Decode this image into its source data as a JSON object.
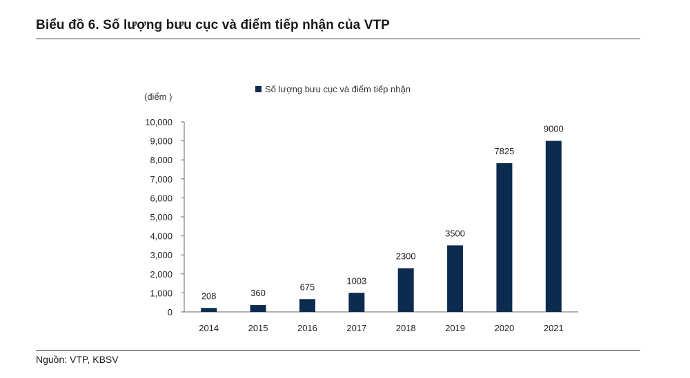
{
  "title": "Biểu đồ 6. Số lượng bưu cục và điểm tiếp nhận của VTP",
  "source": "Nguồn: VTP, KBSV",
  "colors": {
    "bar": "#0c2b4e",
    "axis": "#666666",
    "text": "#222222"
  },
  "chart_data": {
    "type": "bar",
    "unit_label": "(điểm )",
    "categories": [
      "2014",
      "2015",
      "2016",
      "2017",
      "2018",
      "2019",
      "2020",
      "2021"
    ],
    "series": [
      {
        "name": "Số lượng bưu cục và điểm tiếp nhận",
        "values": [
          208,
          360,
          675,
          1003,
          2300,
          3500,
          7825,
          9000
        ]
      }
    ],
    "data_labels": [
      "208",
      "360",
      "675",
      "1003",
      "2300",
      "3500",
      "7825",
      "9000"
    ],
    "ylim": [
      0,
      10000
    ],
    "yticks": [
      0,
      1000,
      2000,
      3000,
      4000,
      5000,
      6000,
      7000,
      8000,
      9000,
      10000
    ],
    "ytick_labels": [
      "0",
      "1,000",
      "2,000",
      "3,000",
      "4,000",
      "5,000",
      "6,000",
      "7,000",
      "8,000",
      "9,000",
      "10,000"
    ],
    "grid": false,
    "legend_position": "top"
  }
}
